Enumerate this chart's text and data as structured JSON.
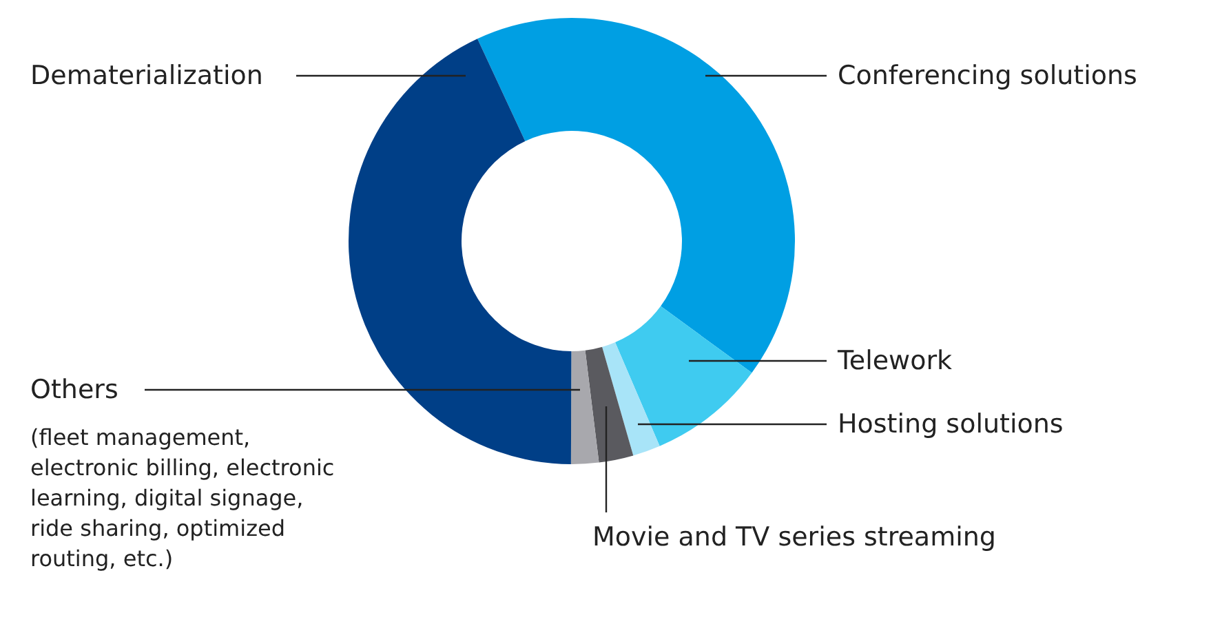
{
  "chart_data": {
    "type": "donut",
    "categories": [
      "Conferencing solutions",
      "Telework",
      "Hosting solutions",
      "Movie and TV series streaming",
      "Others",
      "Dematerialization"
    ],
    "values": [
      42,
      8.5,
      2,
      2.5,
      2,
      43
    ],
    "colors": [
      "#009fe3",
      "#3fcbf0",
      "#a8e4f8",
      "#5a5a5f",
      "#a8a8ad",
      "#003f87"
    ],
    "annotations": [
      "(fleet management,\nelectronic billing, electronic\nlearning, digital signage,\nride sharing, optimized\nrouting, etc.)"
    ]
  }
}
